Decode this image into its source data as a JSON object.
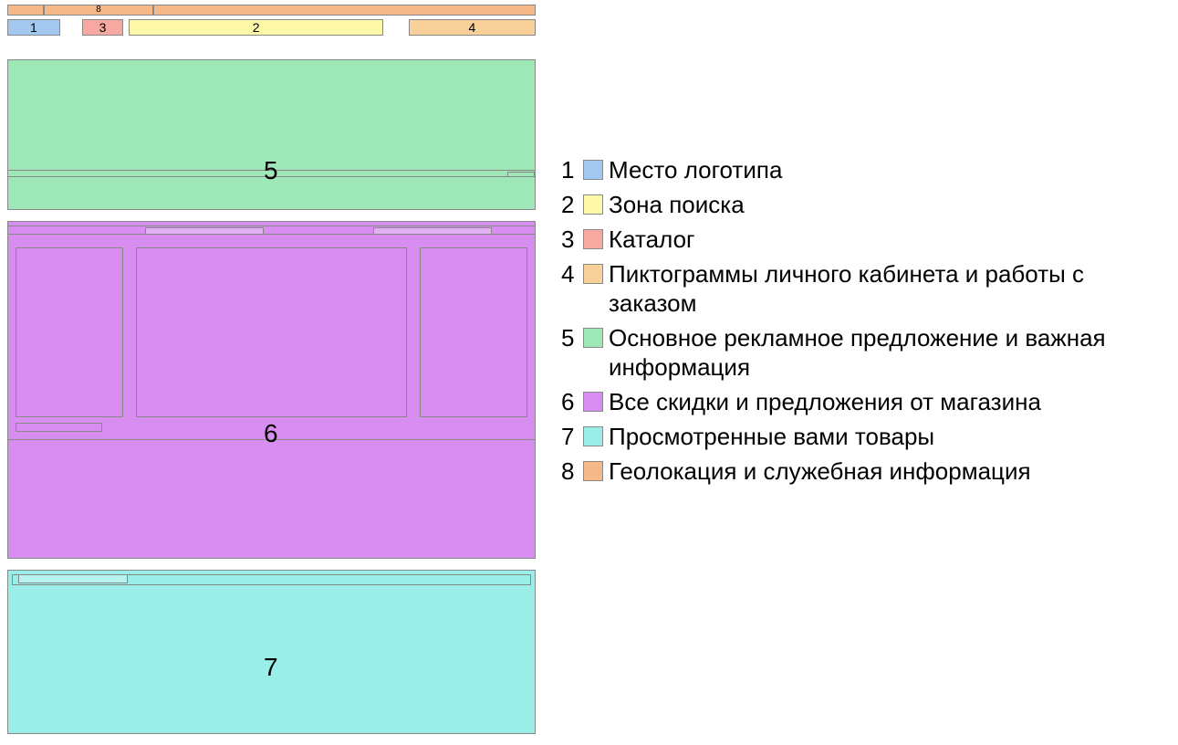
{
  "colors": {
    "logo": "#a3c8f0",
    "search": "#fcf8a8",
    "catalog": "#f7a8a0",
    "account": "#f7d09a",
    "promo": "#9ee8b8",
    "deals": "#d88ef0",
    "viewed": "#9aeee8",
    "geo": "#f5b888",
    "border": "#888888"
  },
  "wireframe": {
    "geo": {
      "label": "8"
    },
    "logo": {
      "label": "1"
    },
    "catalog": {
      "label": "3"
    },
    "search": {
      "label": "2"
    },
    "account": {
      "label": "4"
    },
    "promo": {
      "label": "5"
    },
    "deals": {
      "label": "6"
    },
    "viewed": {
      "label": "7"
    }
  },
  "legend": [
    {
      "num": "1",
      "color_key": "logo",
      "text": "Место логотипа"
    },
    {
      "num": "2",
      "color_key": "search",
      "text": "Зона поиска"
    },
    {
      "num": "3",
      "color_key": "catalog",
      "text": "Каталог"
    },
    {
      "num": "4",
      "color_key": "account",
      "text": "Пиктограммы личного кабинета и работы с заказом"
    },
    {
      "num": "5",
      "color_key": "promo",
      "text": "Основное рекламное предложение и важная информация"
    },
    {
      "num": "6",
      "color_key": "deals",
      "text": "Все скидки и предложения от магазина"
    },
    {
      "num": "7",
      "color_key": "viewed",
      "text": "Просмотренные вами товары"
    },
    {
      "num": "8",
      "color_key": "geo",
      "text": "Геолокация и служебная информация"
    }
  ]
}
